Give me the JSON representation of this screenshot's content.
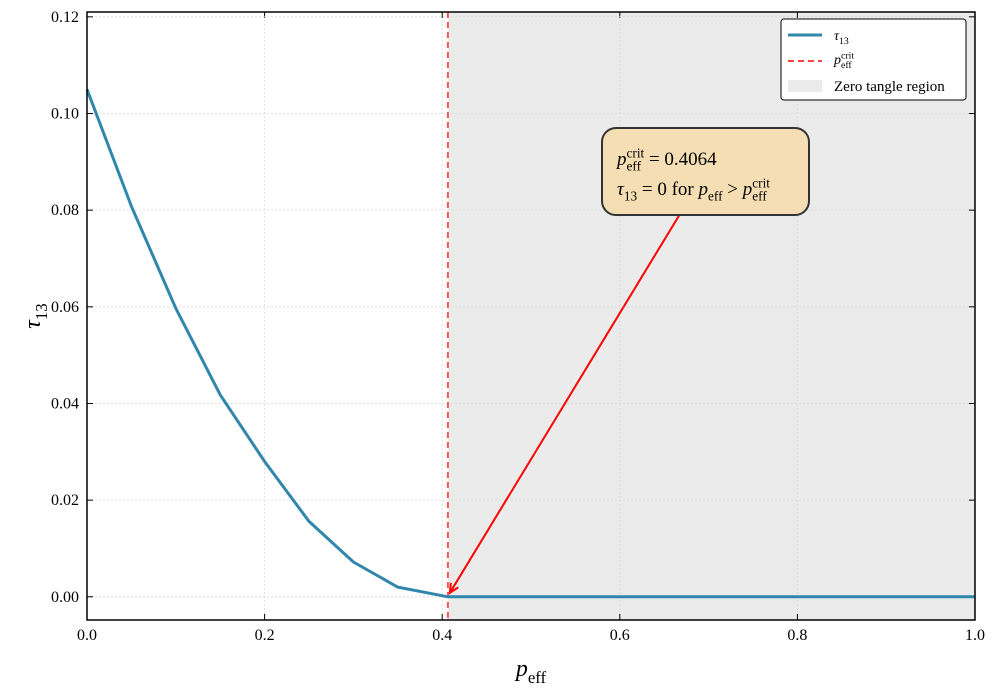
{
  "chart_data": {
    "type": "line",
    "x_label": [
      {
        "text": "p",
        "style": "italic"
      },
      {
        "text": "eff",
        "style": "sub"
      }
    ],
    "y_label": [
      {
        "text": "τ",
        "style": "italic"
      },
      {
        "text": "13",
        "style": "sub"
      }
    ],
    "x": [
      0,
      0.05,
      0.1,
      0.15,
      0.2,
      0.25,
      0.3,
      0.35,
      0.4064,
      0.5,
      0.6,
      0.7,
      0.8,
      0.9,
      1.0
    ],
    "series": [
      {
        "name": [
          {
            "text": "τ",
            "style": "italic"
          },
          {
            "text": "13",
            "style": "sub"
          }
        ],
        "color": "#3087ab",
        "values": [
          0.105,
          0.0808,
          0.0597,
          0.0418,
          0.028,
          0.0156,
          0.0072,
          0.002,
          0,
          0,
          0,
          0,
          0,
          0,
          0
        ]
      }
    ],
    "critical_line": {
      "name": [
        {
          "text": "p",
          "style": "italic"
        },
        {
          "text": "eff",
          "style": "sub"
        },
        {
          "text": "crit",
          "style": "sup"
        }
      ],
      "x": 0.4064,
      "color": "#ff4444"
    },
    "shaded_region": {
      "name": [
        {
          "text": "Zero tangle region"
        }
      ],
      "xrange": [
        0.4064,
        1.0
      ],
      "color": "#ebebeb"
    },
    "annotation": {
      "lines": [
        [
          {
            "text": "p",
            "style": "italic"
          },
          {
            "text": "eff",
            "style": "sub"
          },
          {
            "text": "crit",
            "style": "sup"
          },
          {
            "text": " = 0.4064"
          }
        ],
        [
          {
            "text": "τ",
            "style": "italic"
          },
          {
            "text": "13",
            "style": "sub"
          },
          {
            "text": " = 0 for "
          },
          {
            "text": "p",
            "style": "italic"
          },
          {
            "text": "eff",
            "style": "sub"
          },
          {
            "text": " > "
          },
          {
            "text": "p",
            "style": "italic"
          },
          {
            "text": "eff",
            "style": "sub"
          },
          {
            "text": "crit",
            "style": "sup"
          }
        ]
      ],
      "xy": [
        0.4064,
        0
      ],
      "box_color": "#f5deb3",
      "arrow_color": "#ff0000"
    },
    "xlim": [
      0,
      1
    ],
    "ylim": [
      -0.0048,
      0.121
    ],
    "xticks": [
      {
        "value": 0,
        "label": "0.0"
      },
      {
        "value": 0.2,
        "label": "0.2"
      },
      {
        "value": 0.4,
        "label": "0.4"
      },
      {
        "value": 0.6,
        "label": "0.6"
      },
      {
        "value": 0.8,
        "label": "0.8"
      },
      {
        "value": 1.0,
        "label": "1.0"
      }
    ],
    "yticks": [
      {
        "value": 0,
        "label": "0.00"
      },
      {
        "value": 0.02,
        "label": "0.02"
      },
      {
        "value": 0.04,
        "label": "0.04"
      },
      {
        "value": 0.06,
        "label": "0.06"
      },
      {
        "value": 0.08,
        "label": "0.08"
      },
      {
        "value": 0.1,
        "label": "0.10"
      },
      {
        "value": 0.12,
        "label": "0.12"
      }
    ],
    "grid": true,
    "legend": "upper right"
  }
}
